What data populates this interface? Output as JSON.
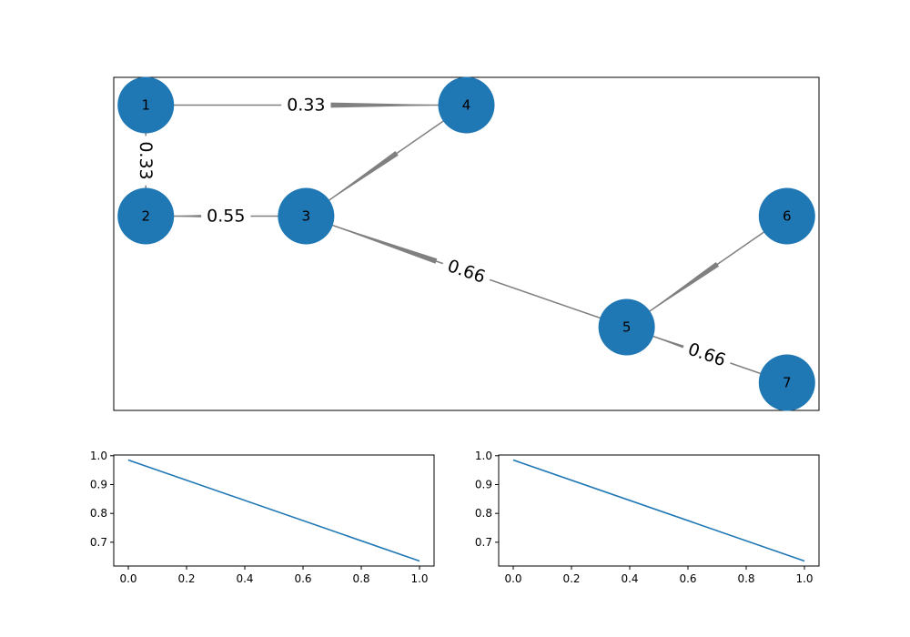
{
  "colors": {
    "node": "#1f77b4",
    "edge": "#808080",
    "line": "#1f77b4",
    "axes": "#000000",
    "background": "#ffffff"
  },
  "chart_data": [
    {
      "type": "network",
      "nodes": [
        {
          "id": "1",
          "x": 0,
          "y": 3
        },
        {
          "id": "2",
          "x": 0,
          "y": 2
        },
        {
          "id": "3",
          "x": 1,
          "y": 2
        },
        {
          "id": "4",
          "x": 2,
          "y": 3
        },
        {
          "id": "5",
          "x": 3,
          "y": 1
        },
        {
          "id": "6",
          "x": 4,
          "y": 2
        },
        {
          "id": "7",
          "x": 4,
          "y": 0.5
        }
      ],
      "edges": [
        {
          "source": "1",
          "target": "4",
          "label": "0.33",
          "arrow_at": "target"
        },
        {
          "source": "1",
          "target": "2",
          "label": "0.33",
          "arrow_at": "none"
        },
        {
          "source": "3",
          "target": "2",
          "label": "0.55",
          "arrow_at": "target"
        },
        {
          "source": "4",
          "target": "3",
          "label": "",
          "arrow_at": "target"
        },
        {
          "source": "5",
          "target": "3",
          "label": "0.66",
          "arrow_at": "target"
        },
        {
          "source": "6",
          "target": "5",
          "label": "",
          "arrow_at": "target"
        },
        {
          "source": "7",
          "target": "5",
          "label": "0.66",
          "arrow_at": "target"
        }
      ],
      "xlim": [
        -0.2,
        4.2
      ],
      "ylim": [
        0.25,
        3.25
      ]
    },
    {
      "type": "line",
      "x": [
        0.0,
        1.0
      ],
      "series": [
        {
          "values": [
            0.985,
            0.635
          ]
        }
      ],
      "xlim": [
        -0.05,
        1.05
      ],
      "ylim": [
        0.6175,
        1.0025
      ],
      "xticks": [
        "0.0",
        "0.2",
        "0.4",
        "0.6",
        "0.8",
        "1.0"
      ],
      "yticks": [
        "0.7",
        "0.8",
        "0.9",
        "1.0"
      ],
      "title": "",
      "xlabel": "",
      "ylabel": ""
    },
    {
      "type": "line",
      "x": [
        0.0,
        1.0
      ],
      "series": [
        {
          "values": [
            0.985,
            0.635
          ]
        }
      ],
      "xlim": [
        -0.05,
        1.05
      ],
      "ylim": [
        0.6175,
        1.0025
      ],
      "xticks": [
        "0.0",
        "0.2",
        "0.4",
        "0.6",
        "0.8",
        "1.0"
      ],
      "yticks": [
        "0.7",
        "0.8",
        "0.9",
        "1.0"
      ],
      "title": "",
      "xlabel": "",
      "ylabel": ""
    }
  ]
}
